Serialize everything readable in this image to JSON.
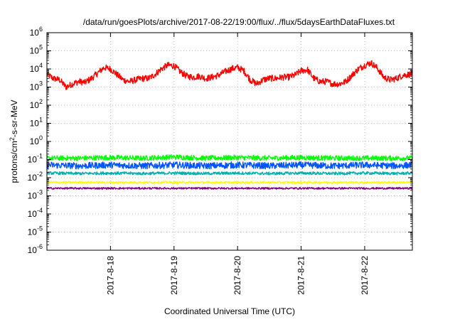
{
  "chart_data": {
    "type": "line",
    "title": "/data/run/goesPlots/archive/2017-08-22/19:00/flux/../flux/5daysEarthDataFluxes.txt",
    "xlabel": "Coordinated Universal Time (UTC)",
    "ylabel": {
      "prefix": "protons/cm",
      "superscript": "2",
      "suffix": "-s-sr-MeV"
    },
    "yscale": "log",
    "ylim": [
      1e-06,
      1000000.0
    ],
    "xlim": [
      0,
      5.75
    ],
    "grid": true,
    "legend": "none",
    "y_ticks": [
      {
        "value": -6,
        "base": "10",
        "exp": "-6"
      },
      {
        "value": -5,
        "base": "10",
        "exp": "-5"
      },
      {
        "value": -4,
        "base": "10",
        "exp": "-4"
      },
      {
        "value": -3,
        "base": "10",
        "exp": "-3"
      },
      {
        "value": -2,
        "base": "10",
        "exp": "-2"
      },
      {
        "value": -1,
        "base": "10",
        "exp": "-1"
      },
      {
        "value": 0,
        "base": "10",
        "exp": "0"
      },
      {
        "value": 1,
        "base": "10",
        "exp": "1"
      },
      {
        "value": 2,
        "base": "10",
        "exp": "2"
      },
      {
        "value": 3,
        "base": "10",
        "exp": "3"
      },
      {
        "value": 4,
        "base": "10",
        "exp": "4"
      },
      {
        "value": 5,
        "base": "10",
        "exp": "5"
      },
      {
        "value": 6,
        "base": "10",
        "exp": "6"
      }
    ],
    "x_ticks": [
      {
        "value": 1,
        "label": "2017-8-18"
      },
      {
        "value": 2,
        "label": "2017-8-19"
      },
      {
        "value": 3,
        "label": "2017-8-20"
      },
      {
        "value": 4,
        "label": "2017-8-21"
      },
      {
        "value": 5,
        "label": "2017-8-22"
      }
    ],
    "series": [
      {
        "color": "#ff0000",
        "x": [
          0,
          0.1,
          0.2,
          0.3,
          0.4,
          0.5,
          0.6,
          0.7,
          0.8,
          0.9,
          1.0,
          1.1,
          1.2,
          1.3,
          1.4,
          1.5,
          1.6,
          1.7,
          1.8,
          1.9,
          2.0,
          2.1,
          2.2,
          2.3,
          2.4,
          2.5,
          2.6,
          2.7,
          2.8,
          2.9,
          3.0,
          3.1,
          3.2,
          3.3,
          3.4,
          3.5,
          3.6,
          3.7,
          3.8,
          3.9,
          4.0,
          4.1,
          4.2,
          4.3,
          4.4,
          4.5,
          4.6,
          4.7,
          4.8,
          4.9,
          5.0,
          5.1,
          5.2,
          5.3,
          5.4,
          5.5,
          5.6,
          5.7,
          5.75
        ],
        "values": [
          5000,
          3000,
          2500,
          1000,
          1500,
          2000,
          1800,
          3000,
          6000,
          12000,
          10000,
          5000,
          2500,
          2000,
          2500,
          3000,
          3000,
          5000,
          10000,
          16000,
          15000,
          7000,
          4000,
          3500,
          4000,
          3000,
          3500,
          4500,
          7000,
          10000,
          12000,
          8000,
          2500,
          1500,
          2500,
          3000,
          3000,
          3500,
          3500,
          4500,
          8000,
          9000,
          3000,
          2000,
          2000,
          1500,
          1500,
          2000,
          4500,
          10000,
          16000,
          22000,
          11000,
          3500,
          2500,
          3000,
          4500,
          5000,
          5000
        ],
        "noise": 0.18
      },
      {
        "color": "#00ff00",
        "x": [
          0,
          0.5,
          1,
          1.5,
          2,
          2.5,
          3,
          3.5,
          4,
          4.5,
          5,
          5.5,
          5.75
        ],
        "values": [
          0.12,
          0.12,
          0.13,
          0.12,
          0.14,
          0.12,
          0.13,
          0.12,
          0.13,
          0.12,
          0.12,
          0.12,
          0.12
        ],
        "noise": 0.14
      },
      {
        "color": "#0055ff",
        "x": [
          0,
          0.5,
          1,
          1.5,
          2,
          2.5,
          3,
          3.5,
          4,
          4.5,
          5,
          5.5,
          5.75
        ],
        "values": [
          0.05,
          0.045,
          0.05,
          0.045,
          0.05,
          0.045,
          0.05,
          0.045,
          0.05,
          0.045,
          0.05,
          0.045,
          0.05
        ],
        "noise": 0.18
      },
      {
        "color": "#00b0b0",
        "x": [
          0,
          0.5,
          1,
          1.5,
          2,
          2.5,
          3,
          3.5,
          4,
          4.5,
          5,
          5.5,
          5.75
        ],
        "values": [
          0.018,
          0.017,
          0.018,
          0.017,
          0.018,
          0.017,
          0.018,
          0.017,
          0.018,
          0.017,
          0.018,
          0.017,
          0.018
        ],
        "noise": 0.08
      },
      {
        "color": "#ffff00",
        "x": [
          0,
          0.5,
          1,
          1.5,
          2,
          2.5,
          3,
          3.5,
          4,
          4.5,
          5,
          5.5,
          5.75
        ],
        "values": [
          0.0055,
          0.0055,
          0.0055,
          0.0055,
          0.0055,
          0.0055,
          0.0055,
          0.0055,
          0.0055,
          0.0055,
          0.0055,
          0.0055,
          0.0055
        ],
        "noise": 0.06
      },
      {
        "color": "#800080",
        "x": [
          0,
          0.5,
          1,
          1.5,
          2,
          2.5,
          3,
          3.5,
          4,
          4.5,
          5,
          5.5,
          5.75
        ],
        "values": [
          0.0026,
          0.0026,
          0.0026,
          0.0026,
          0.0026,
          0.0026,
          0.0026,
          0.0026,
          0.0026,
          0.0026,
          0.0026,
          0.0026,
          0.0026
        ],
        "noise": 0.05
      }
    ]
  }
}
